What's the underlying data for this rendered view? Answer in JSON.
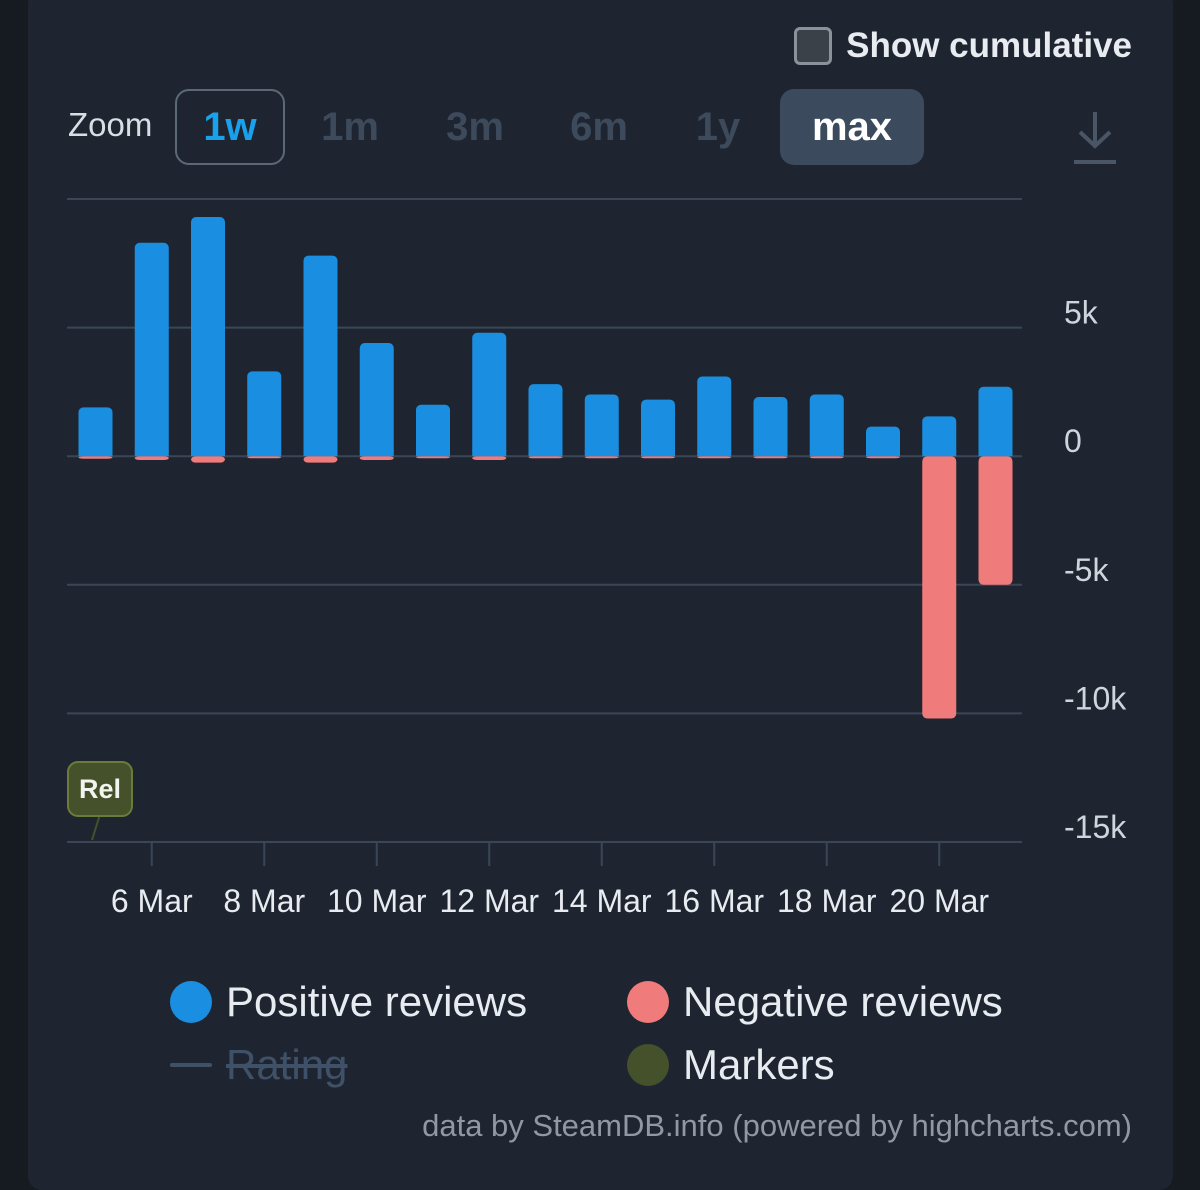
{
  "controls": {
    "show_cumulative": "Show cumulative",
    "zoom_label": "Zoom",
    "zoom_buttons": [
      "1w",
      "1m",
      "3m",
      "6m",
      "1y",
      "max"
    ],
    "zoom_selected": "1w",
    "zoom_active": "max"
  },
  "colors": {
    "positive": "#1a8ee0",
    "negative": "#ef7b7b",
    "markers": "#44512a",
    "rating": "#3f5168"
  },
  "chart_data": {
    "type": "bar",
    "title": "",
    "xlabel": "",
    "ylabel": "",
    "ylim": [
      -15000,
      10000
    ],
    "yticks": [
      5000,
      0,
      -5000,
      -10000,
      -15000
    ],
    "ytick_labels": [
      "5k",
      "0",
      "-5k",
      "-10k",
      "-15k"
    ],
    "xtick_labels": [
      "6 Mar",
      "8 Mar",
      "10 Mar",
      "12 Mar",
      "14 Mar",
      "16 Mar",
      "18 Mar",
      "20 Mar"
    ],
    "categories": [
      "5 Mar",
      "6 Mar",
      "7 Mar",
      "8 Mar",
      "9 Mar",
      "10 Mar",
      "11 Mar",
      "12 Mar",
      "13 Mar",
      "14 Mar",
      "15 Mar",
      "16 Mar",
      "17 Mar",
      "18 Mar",
      "19 Mar",
      "20 Mar",
      "21 Mar"
    ],
    "series": [
      {
        "name": "Positive reviews",
        "values": [
          1900,
          8300,
          9300,
          3300,
          7800,
          4400,
          2000,
          4800,
          2800,
          2400,
          2200,
          3100,
          2300,
          2400,
          1150,
          1550,
          2700
        ]
      },
      {
        "name": "Negative reviews",
        "values": [
          -100,
          -150,
          -250,
          -80,
          -250,
          -150,
          -80,
          -150,
          -80,
          -80,
          -80,
          -80,
          -80,
          -80,
          -30,
          -10200,
          -5000
        ]
      }
    ],
    "markers": [
      {
        "label": "Rel",
        "date": "5 Mar"
      }
    ],
    "legend": [
      "Positive reviews",
      "Negative reviews",
      "Rating",
      "Markers"
    ]
  },
  "credit": "data by SteamDB.info (powered by highcharts.com)"
}
